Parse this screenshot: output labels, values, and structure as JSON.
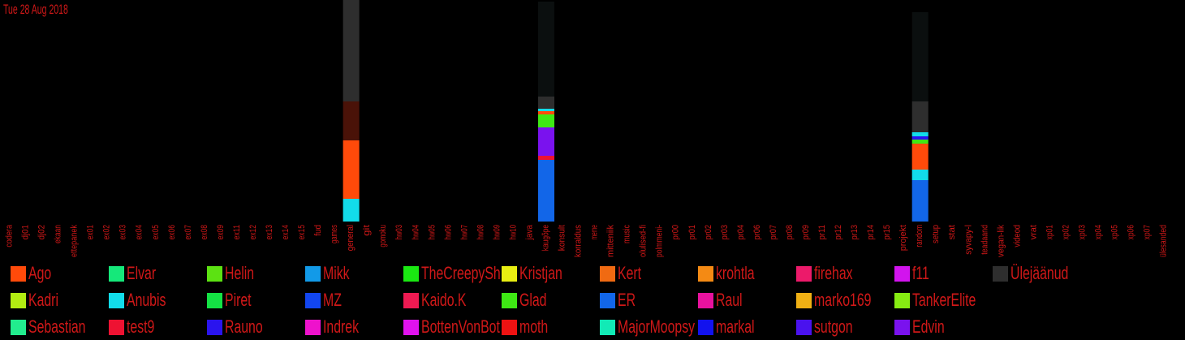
{
  "date": "Tue 28 Aug 2018",
  "chart_data": {
    "type": "bar",
    "stacked": true,
    "categories": [
      "codera",
      "dj01",
      "dj02",
      "ekaan",
      "ettepanek",
      "ex01",
      "ex02",
      "ex03",
      "ex04",
      "ex05",
      "ex06",
      "ex07",
      "ex08",
      "ex09",
      "ex11",
      "ex12",
      "ex13",
      "ex14",
      "ex15",
      "fud",
      "games",
      "general",
      "git",
      "gomoku",
      "hw03",
      "hw04",
      "hw05",
      "hw06",
      "hw07",
      "hw08",
      "hw09",
      "hw10",
      "java",
      "kaugõpe",
      "konsult",
      "korraldus",
      "meme",
      "mitteniik",
      "music",
      "olulised-fi",
      "polmmeni-",
      "pr00",
      "pr01",
      "pr02",
      "pr03",
      "pr04",
      "pr06",
      "pr07",
      "pr08",
      "pr09",
      "pr11",
      "pr12",
      "pr13",
      "pr14",
      "pr15",
      "projekt",
      "random",
      "setup",
      "stat",
      "syvapy-l",
      "teadaand",
      "vegan-lik",
      "videod",
      "vrat",
      "xp01",
      "xp02",
      "xp03",
      "xp04",
      "xp05",
      "xp06",
      "xp07",
      "ülesanded"
    ],
    "ylim": [
      0,
      273
    ],
    "grid": false,
    "legend_placement": "bottom",
    "columns": [
      {
        "category": "general",
        "segments": [
          {
            "series": "Anubis",
            "value": 28
          },
          {
            "series": "Ago",
            "value": 72
          },
          {
            "series": "(dark red)",
            "value": 48
          },
          {
            "series": "Ülejäänud",
            "value": 126
          }
        ]
      },
      {
        "category": "kaugõpe",
        "segments": [
          {
            "series": "ER",
            "value": 76
          },
          {
            "series": "test9",
            "value": 5
          },
          {
            "series": "Edvin",
            "value": 35
          },
          {
            "series": "Glad",
            "value": 16
          },
          {
            "series": "Ago",
            "value": 4
          },
          {
            "series": "Anubis",
            "value": 3
          },
          {
            "series": "Ülejäänud",
            "value": 15
          },
          {
            "series": "(dark)",
            "value": 117
          }
        ]
      },
      {
        "category": "random",
        "segments": [
          {
            "series": "ER",
            "value": 51
          },
          {
            "series": "Anubis",
            "value": 13
          },
          {
            "series": "Ago",
            "value": 32
          },
          {
            "series": "Glad",
            "value": 5
          },
          {
            "series": "Rauno",
            "value": 4
          },
          {
            "series": "Anubis",
            "value": 5
          },
          {
            "series": "Ülejäänud",
            "value": 38
          },
          {
            "series": "(dark)",
            "value": 110
          }
        ]
      }
    ],
    "series_colors": {
      "(dark red)": "#4a1208",
      "(dark)": "#0b0f0f",
      "Ago": "#ff4a0a",
      "Elvar": "#15e87a",
      "Helin": "#5ce212",
      "Mikk": "#129ae8",
      "TheCreepySh": "#1ae812",
      "Kristjan": "#e8ee12",
      "Kert": "#f06a12",
      "krohtla": "#f48a14",
      "firehax": "#ec1a6a",
      "f11": "#d214ee",
      "Ülejäänud": "#2e2e2e",
      "Kadri": "#b2ec12",
      "Anubis": "#12dcea",
      "Piret": "#14e244",
      "MZ": "#1246f0",
      "Kaido.K": "#ee1a52",
      "Glad": "#3ee814",
      "ER": "#1266e8",
      "Raul": "#e8129e",
      "marko169": "#f0b014",
      "TankerElite": "#86ec12",
      "Sebastian": "#22ec8e",
      "test9": "#ee1232",
      "Rauno": "#2a14ee",
      "Indrek": "#ee12cc",
      "BottenVonBot": "#e012ee",
      "moth": "#ee1212",
      "MajorMoopsy": "#12eab6",
      "markal": "#1212ee",
      "sutgon": "#4a12ee",
      "Edvin": "#7a12ee"
    }
  },
  "legend": [
    [
      {
        "label": "Ago",
        "color": "#ff4a0a"
      },
      {
        "label": "Elvar",
        "color": "#15e87a"
      },
      {
        "label": "Helin",
        "color": "#5ce212"
      },
      {
        "label": "Mikk",
        "color": "#129ae8"
      },
      {
        "label": "TheCreepySh",
        "color": "#1ae812"
      },
      {
        "label": "Kristjan",
        "color": "#e8ee12"
      },
      {
        "label": "Kert",
        "color": "#f06a12"
      },
      {
        "label": "krohtla",
        "color": "#f48a14"
      },
      {
        "label": "firehax",
        "color": "#ec1a6a"
      },
      {
        "label": "f11",
        "color": "#d214ee"
      },
      {
        "label": "Ülejäänud",
        "color": "#2e2e2e"
      }
    ],
    [
      {
        "label": "Kadri",
        "color": "#b2ec12"
      },
      {
        "label": "Anubis",
        "color": "#12dcea"
      },
      {
        "label": "Piret",
        "color": "#14e244"
      },
      {
        "label": "MZ",
        "color": "#1246f0"
      },
      {
        "label": "Kaido.K",
        "color": "#ee1a52"
      },
      {
        "label": "Glad",
        "color": "#3ee814"
      },
      {
        "label": "ER",
        "color": "#1266e8"
      },
      {
        "label": "Raul",
        "color": "#e8129e"
      },
      {
        "label": "marko169",
        "color": "#f0b014"
      },
      {
        "label": "TankerElite",
        "color": "#86ec12"
      }
    ],
    [
      {
        "label": "Sebastian",
        "color": "#22ec8e"
      },
      {
        "label": "test9",
        "color": "#ee1232"
      },
      {
        "label": "Rauno",
        "color": "#2a14ee"
      },
      {
        "label": "Indrek",
        "color": "#ee12cc"
      },
      {
        "label": "BottenVonBot",
        "color": "#e012ee"
      },
      {
        "label": "moth",
        "color": "#ee1212"
      },
      {
        "label": "MajorMoopsy",
        "color": "#12eab6"
      },
      {
        "label": "markal",
        "color": "#1212ee"
      },
      {
        "label": "sutgon",
        "color": "#4a12ee"
      },
      {
        "label": "Edvin",
        "color": "#7a12ee"
      }
    ]
  ]
}
